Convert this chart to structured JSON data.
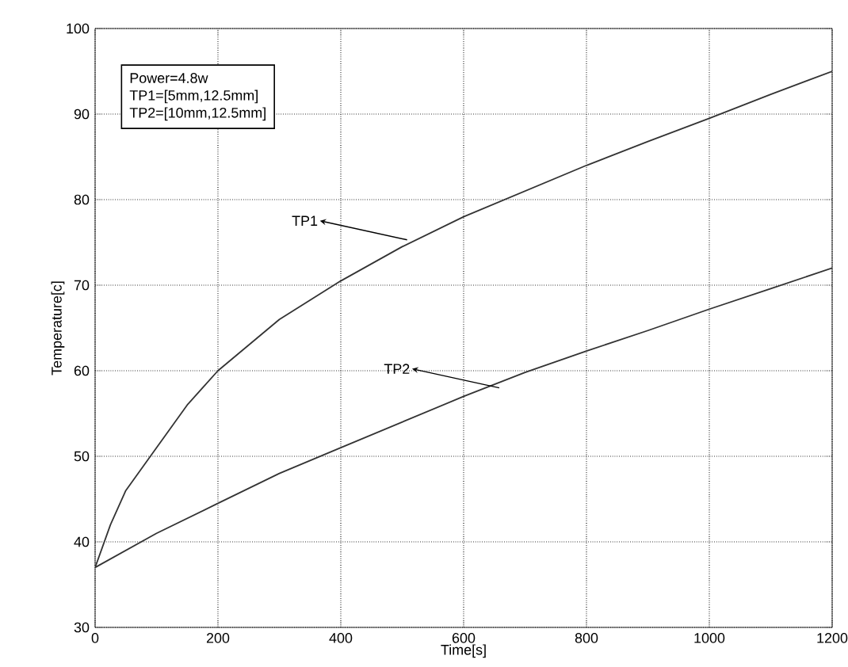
{
  "chart_data": {
    "type": "line",
    "xlabel": "Time[s]",
    "ylabel": "Temperature[c]",
    "xlim": [
      0,
      1200
    ],
    "xticks": [
      0,
      200,
      400,
      600,
      800,
      1000,
      1200
    ],
    "ylim": [
      30,
      100
    ],
    "yticks": [
      30,
      40,
      50,
      60,
      70,
      80,
      90,
      100
    ],
    "grid": true,
    "legend": false,
    "marker": "none",
    "line_style": "solid",
    "series": [
      {
        "color": "#333333",
        "x": [
          0,
          25,
          50,
          90,
          150,
          200,
          300,
          400,
          500,
          600,
          700,
          800,
          900,
          1000,
          1100,
          1200
        ],
        "values": [
          37,
          42,
          46,
          50,
          56,
          60,
          66,
          70.5,
          74.5,
          78,
          81,
          84,
          86.8,
          89.5,
          92.3,
          95
        ]
      },
      {
        "color": "#333333",
        "x": [
          0,
          100,
          200,
          300,
          400,
          500,
          600,
          700,
          800,
          900,
          1000,
          1100,
          1200
        ],
        "values": [
          37,
          41,
          44.5,
          48,
          51,
          54,
          57,
          59.8,
          62.3,
          64.7,
          67.2,
          69.6,
          72
        ]
      }
    ],
    "annotations": [
      "Power=4.8w",
      "TP1=[5mm,12.5mm]",
      "TP2=[10mm,12.5mm]",
      {
        "text": "TP1",
        "x": 508,
        "y": 75.3
      },
      {
        "text": "TP2",
        "x": 658,
        "y": 58
      }
    ]
  }
}
